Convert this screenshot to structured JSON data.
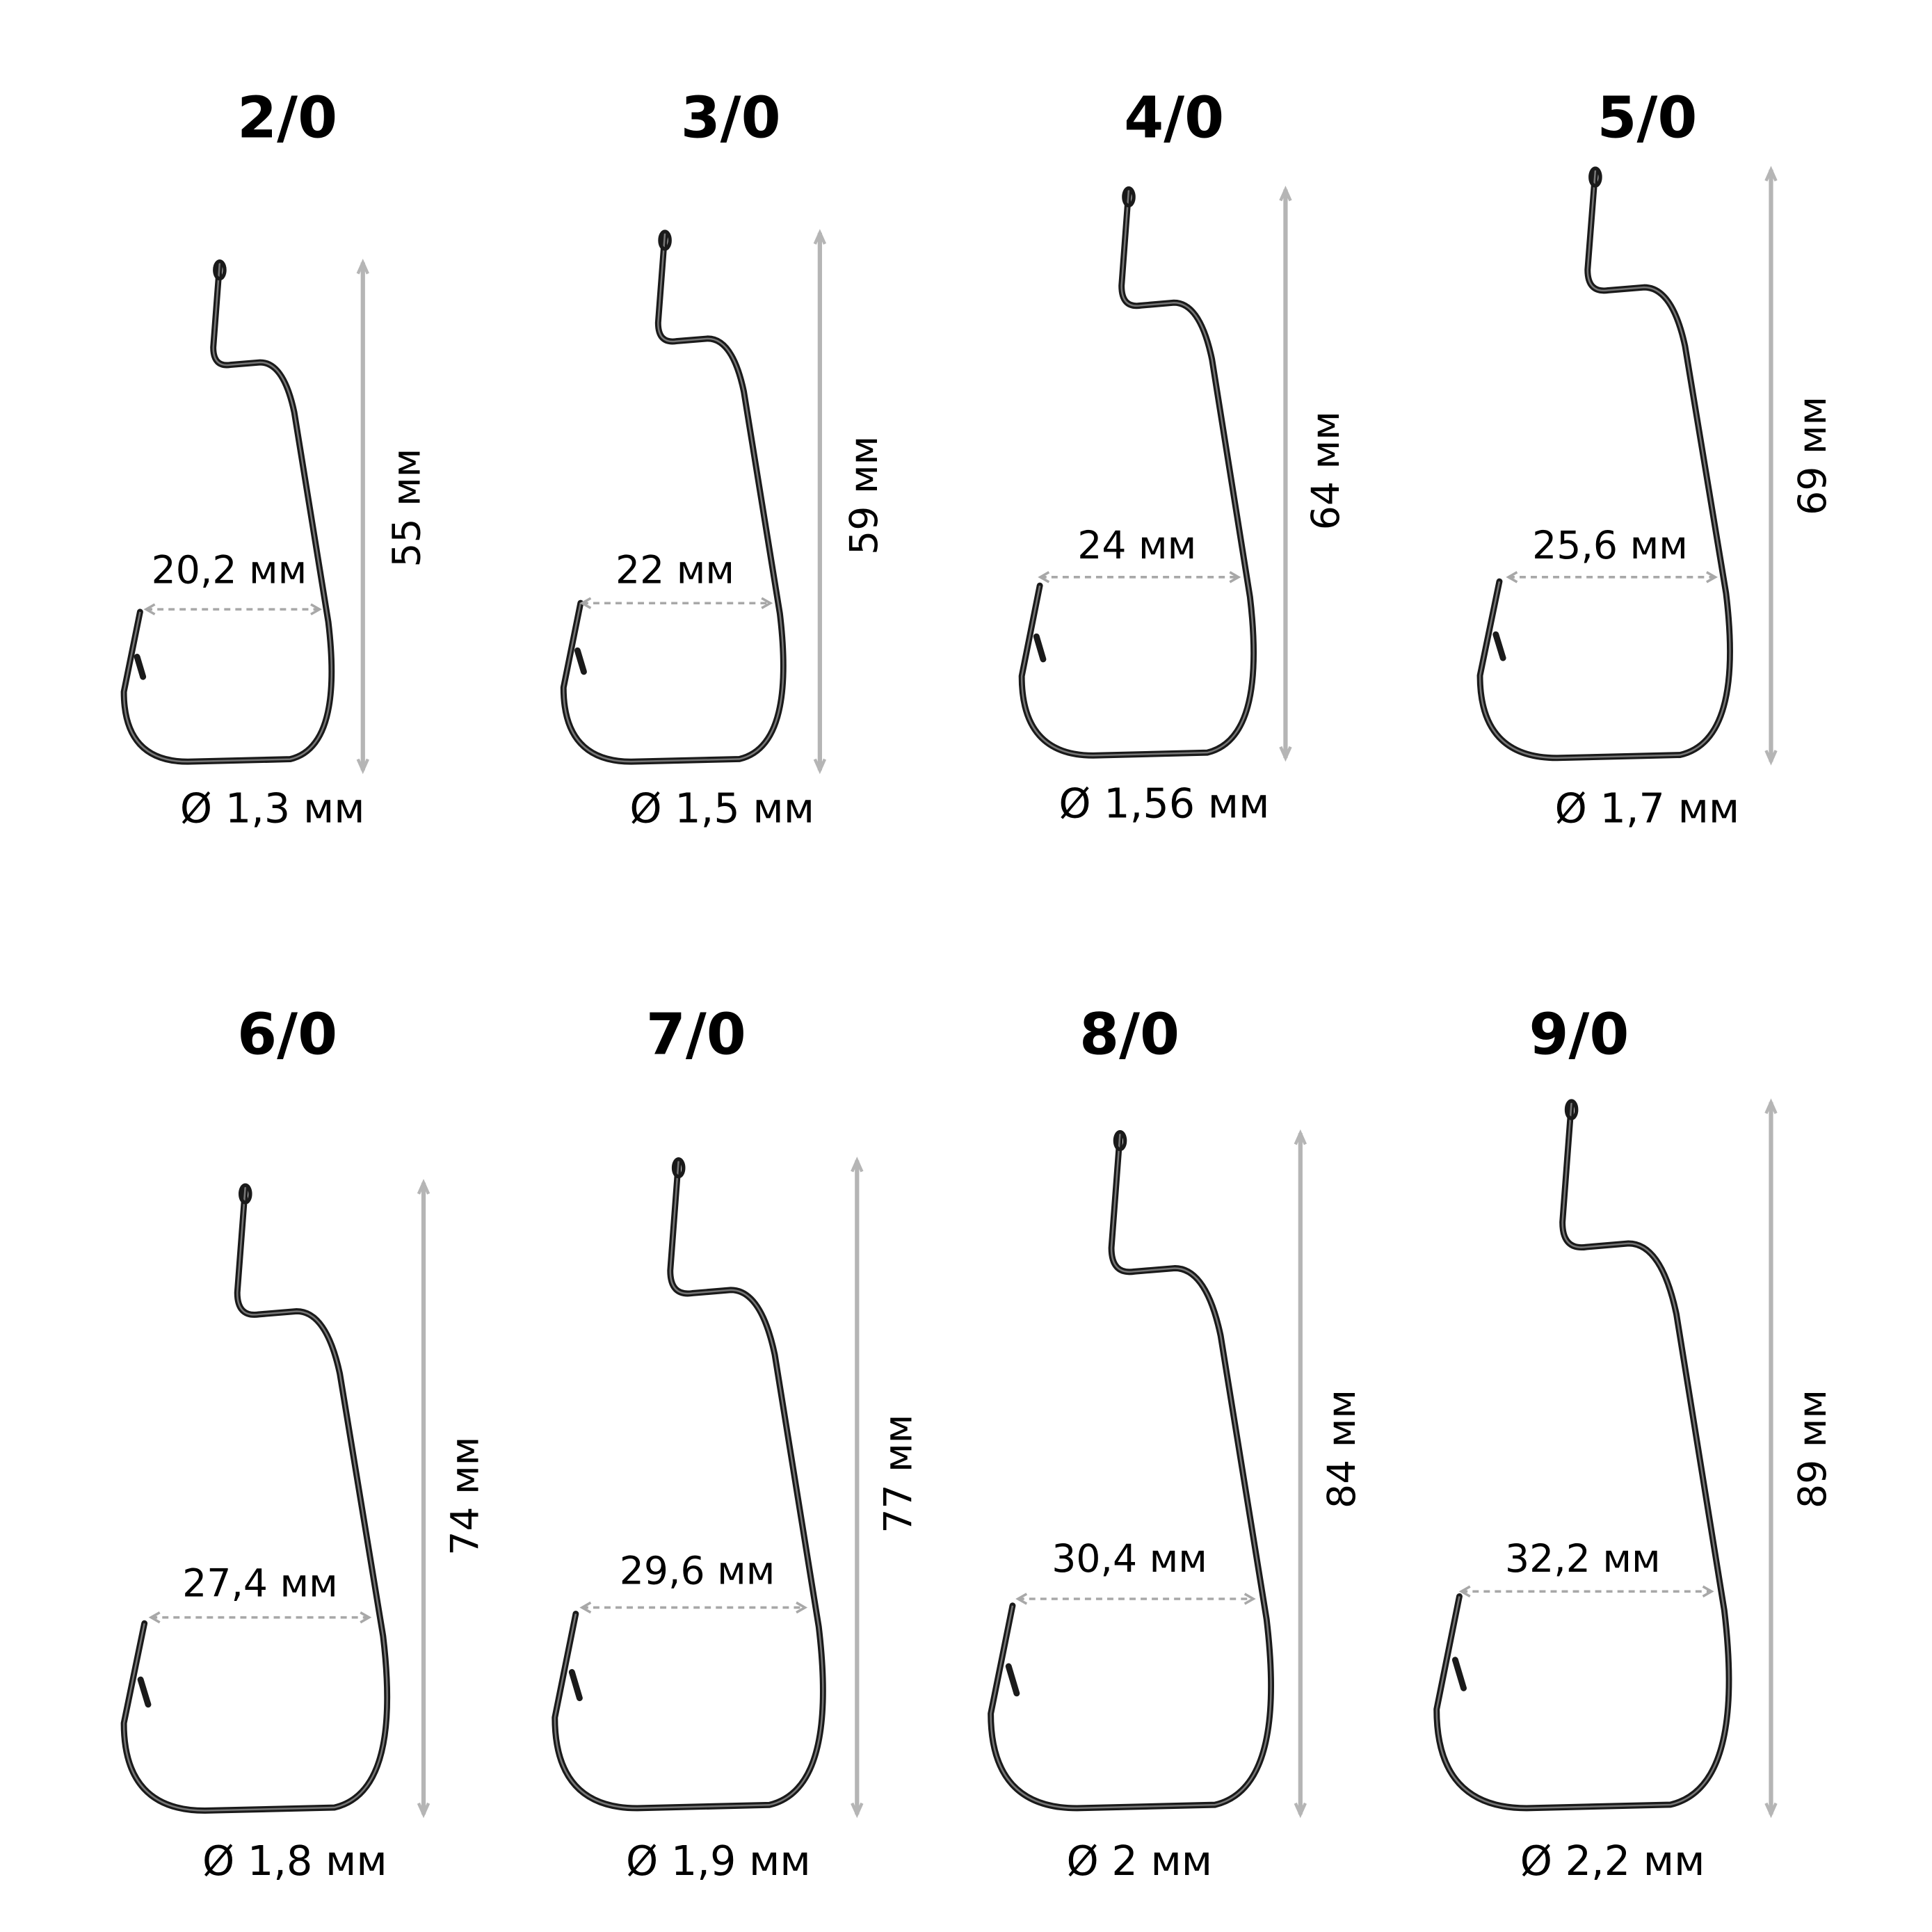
{
  "hooks": [
    {
      "size": "2/0",
      "length": "55 мм",
      "gap": "20,2 мм",
      "wire": "Ø 1,3 мм"
    },
    {
      "size": "3/0",
      "length": "59 мм",
      "gap": "22 мм",
      "wire": "Ø 1,5 мм"
    },
    {
      "size": "4/0",
      "length": "64 мм",
      "gap": "24 мм",
      "wire": "Ø 1,56 мм"
    },
    {
      "size": "5/0",
      "length": "69 мм",
      "gap": "25,6 мм",
      "wire": "Ø 1,7 мм"
    },
    {
      "size": "6/0",
      "length": "74 мм",
      "gap": "27,4 мм",
      "wire": "Ø 1,8 мм"
    },
    {
      "size": "7/0",
      "length": "77 мм",
      "gap": "29,6 мм",
      "wire": "Ø 1,9 мм"
    },
    {
      "size": "8/0",
      "length": "84 мм",
      "gap": "30,4 мм",
      "wire": "Ø 2 мм"
    },
    {
      "size": "9/0",
      "length": "89 мм",
      "gap": "32,2 мм",
      "wire": "Ø 2,2 мм"
    }
  ]
}
